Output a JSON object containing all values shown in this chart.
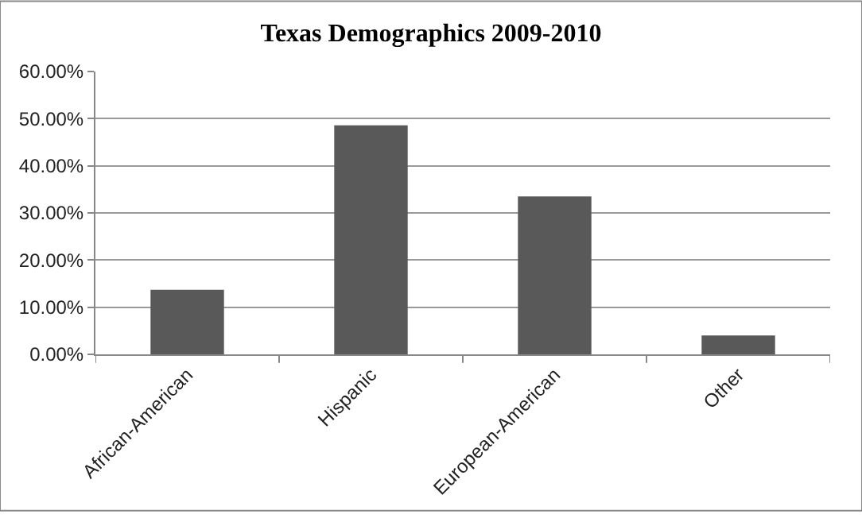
{
  "chart_data": {
    "type": "bar",
    "title": "Texas Demographics 2009-2010",
    "categories": [
      "African-American",
      "Hispanic",
      "European-American",
      "Other"
    ],
    "values": [
      13.7,
      48.6,
      33.5,
      4.0
    ],
    "color": "#595959",
    "ylim": [
      0,
      60
    ],
    "yticks": [
      {
        "value": 0,
        "label": "0.00%"
      },
      {
        "value": 10,
        "label": "10.00%"
      },
      {
        "value": 20,
        "label": "20.00%"
      },
      {
        "value": 30,
        "label": "30.00%"
      },
      {
        "value": 40,
        "label": "40.00%"
      },
      {
        "value": 50,
        "label": "50.00%"
      },
      {
        "value": 60,
        "label": "60.00%"
      }
    ],
    "grid": "y",
    "legend": false
  }
}
